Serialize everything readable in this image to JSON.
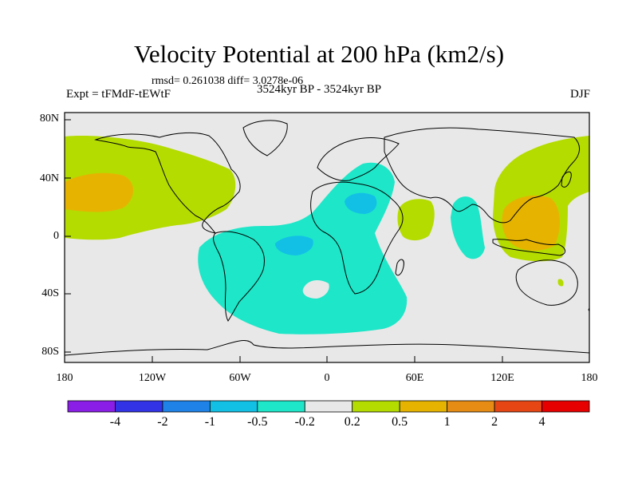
{
  "title": "Velocity Potential at 200 hPa (km2/s)",
  "stats": "rmsd= 0.261038 diff= 3.0278e-06",
  "experiment": "Expt = tFMdF-tEWtF",
  "period": "3524kyr BP - 3524kyr BP",
  "season": "DJF",
  "lat_labels": [
    "80N",
    "40N",
    "0",
    "40S",
    "80S"
  ],
  "lon_labels": [
    "180",
    "120W",
    "60W",
    "0",
    "60E",
    "120E",
    "180"
  ],
  "colorbar": {
    "labels": [
      "-4",
      "-2",
      "-1",
      "-0.5",
      "-0.2",
      "0.2",
      "0.5",
      "1",
      "2",
      "4"
    ],
    "colors": [
      "#8a1ee6",
      "#3232e6",
      "#1e82e6",
      "#12c0e6",
      "#1ee6c8",
      "#e8e8e8",
      "#b4dc00",
      "#e6b400",
      "#e68c14",
      "#e64614",
      "#e60000"
    ]
  },
  "palette": {
    "background": "#e8e8e8",
    "neg_02": "#1ee6c8",
    "neg_05": "#12c0e6",
    "pos_02": "#b4dc00",
    "pos_05": "#e6b400"
  }
}
